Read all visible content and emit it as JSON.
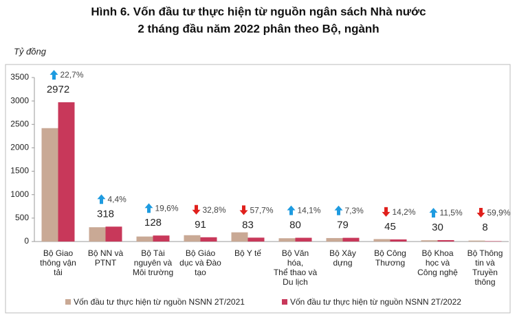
{
  "chart_data": {
    "type": "bar",
    "title": [
      "Hình 6. Vốn đầu tư thực hiện từ nguồn ngân sách Nhà nước",
      "2 tháng đầu năm 2022 phân theo Bộ, ngành"
    ],
    "y_unit": "Tỷ đồng",
    "categories": [
      [
        "Bộ Giao",
        "thông vận",
        "tải"
      ],
      [
        "Bộ NN và",
        "PTNT"
      ],
      [
        "Bộ Tài",
        "nguyên và",
        "Môi trường"
      ],
      [
        "Bộ Giáo",
        "dục và Đào",
        "tạo"
      ],
      [
        "Bộ Y tế"
      ],
      [
        "Bộ Văn",
        "hóa,",
        "Thể thao và",
        "Du lịch"
      ],
      [
        "Bộ Xây",
        "dựng"
      ],
      [
        "Bộ Công",
        "Thương"
      ],
      [
        "Bộ Khoa",
        "học và",
        "Công nghệ"
      ],
      [
        "Bộ Thông",
        "tin và",
        "Truyền",
        "thông"
      ]
    ],
    "series": [
      {
        "name": "Vốn đầu tư thực hiện từ nguồn NSNN 2T/2021",
        "color": "#c9a995",
        "values": [
          2420,
          305,
          107,
          135,
          196,
          70,
          74,
          52,
          27,
          20
        ]
      },
      {
        "name": "Vốn đầu tư thực hiện từ nguồn NSNN  2T/2022",
        "color": "#c8385a",
        "values": [
          2972,
          318,
          128,
          91,
          83,
          80,
          79,
          45,
          30,
          8
        ]
      }
    ],
    "changes": [
      {
        "label": "22,7%",
        "direction": "up"
      },
      {
        "label": "4,4%",
        "direction": "up"
      },
      {
        "label": "19,6%",
        "direction": "up"
      },
      {
        "label": "32,8%",
        "direction": "down"
      },
      {
        "label": "57,7%",
        "direction": "down"
      },
      {
        "label": "14,1%",
        "direction": "up"
      },
      {
        "label": "7,3%",
        "direction": "up"
      },
      {
        "label": "14,2%",
        "direction": "down"
      },
      {
        "label": "11,5%",
        "direction": "up"
      },
      {
        "label": "59,9%",
        "direction": "down"
      }
    ],
    "up_color": "#1e9be0",
    "down_color": "#e0201c",
    "ylim": [
      0,
      3500
    ],
    "yticks": [
      0,
      500,
      1000,
      1500,
      2000,
      2500,
      3000,
      3500
    ],
    "grid": false
  }
}
